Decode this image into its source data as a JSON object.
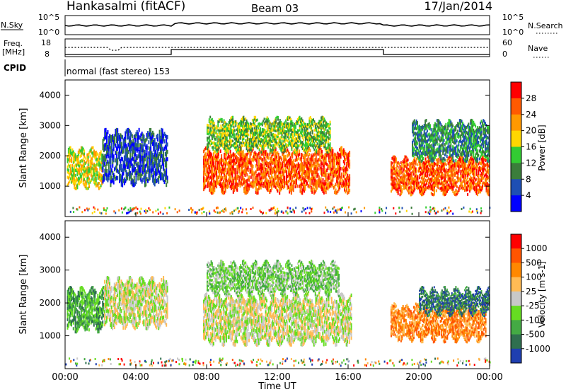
{
  "header": {
    "station": "Hankasalmi (fitACF)",
    "beam": "Beam 03",
    "date": "17/Jan/2014"
  },
  "noise_panel": {
    "left_label": "N.Sky",
    "right_label": "N.Search",
    "left_ticks": [
      "10^5",
      "10^0"
    ],
    "right_ticks": [
      "10^5",
      "10^0"
    ]
  },
  "freq_panel": {
    "left_label_top": "Freq.",
    "left_label_bottom": "[MHz]",
    "right_label": "Nave",
    "left_ticks": [
      "18",
      "8"
    ],
    "right_ticks": [
      "60",
      "0"
    ]
  },
  "cpid_panel": {
    "label": "CPID",
    "mode": "normal (fast stereo) 153"
  },
  "time_axis": {
    "label": "Time UT",
    "ticks": [
      "00:00",
      "04:00",
      "08:00",
      "12:00",
      "16:00",
      "20:00",
      "00:00"
    ]
  },
  "chart_data": [
    {
      "type": "heatmap",
      "title": "Power",
      "xlabel": "Time UT",
      "ylabel": "Slant Range [km]",
      "xlim": [
        0,
        24
      ],
      "ylim": [
        0,
        4500
      ],
      "yticks": [
        "1000",
        "2000",
        "3000",
        "4000"
      ],
      "colorbar": {
        "label": "Power [dB]",
        "ticks": [
          "4",
          "8",
          "12",
          "16",
          "20",
          "24",
          "28"
        ],
        "colors": [
          "#0000ff",
          "#1e4fb4",
          "#3b7d3b",
          "#33cc33",
          "#ffd700",
          "#ff9900",
          "#ff5a00",
          "#ff0000"
        ]
      },
      "regions": [
        {
          "t0": 0.1,
          "t1": 2.1,
          "r0": 1000,
          "r1": 2200,
          "level": 4
        },
        {
          "t0": 2.1,
          "t1": 5.8,
          "r0": 1100,
          "r1": 2800,
          "level": 1
        },
        {
          "t0": 7.8,
          "t1": 16.1,
          "r0": 850,
          "r1": 2200,
          "level": 6
        },
        {
          "t0": 8.0,
          "t1": 15.0,
          "r0": 2200,
          "r1": 3200,
          "level": 3
        },
        {
          "t0": 18.4,
          "t1": 24.0,
          "r0": 800,
          "r1": 1900,
          "level": 6
        },
        {
          "t0": 19.6,
          "t1": 24.0,
          "r0": 1900,
          "r1": 3100,
          "level": 2
        }
      ]
    },
    {
      "type": "heatmap",
      "title": "Velocity",
      "xlabel": "Time UT",
      "ylabel": "Slant Range [km]",
      "xlim": [
        0,
        24
      ],
      "ylim": [
        0,
        4500
      ],
      "yticks": [
        "1000",
        "2000",
        "3000",
        "4000"
      ],
      "colorbar": {
        "label": "Velocity [m s-1]",
        "ticks": [
          "1000",
          "500",
          "100",
          "25",
          "-25",
          "-100",
          "-500",
          "-1000"
        ],
        "colors": [
          "#1f3fb0",
          "#2f6f4f",
          "#44aa44",
          "#66dd22",
          "#c8c8c8",
          "#ffbb55",
          "#ff8800",
          "#ff5500",
          "#ff0000"
        ]
      },
      "regions": [
        {
          "t0": 0.1,
          "t1": 2.2,
          "r0": 1200,
          "r1": 2400,
          "level": 2
        },
        {
          "t0": 2.2,
          "t1": 5.8,
          "r0": 1300,
          "r1": 2700,
          "level": 4
        },
        {
          "t0": 7.8,
          "t1": 16.2,
          "r0": 800,
          "r1": 2200,
          "level": 4
        },
        {
          "t0": 8.0,
          "t1": 15.5,
          "r0": 2300,
          "r1": 3200,
          "level": 3
        },
        {
          "t0": 18.4,
          "t1": 23.8,
          "r0": 900,
          "r1": 1900,
          "level": 6
        },
        {
          "t0": 20.0,
          "t1": 24.0,
          "r0": 1700,
          "r1": 2400,
          "level": 1
        }
      ]
    }
  ]
}
